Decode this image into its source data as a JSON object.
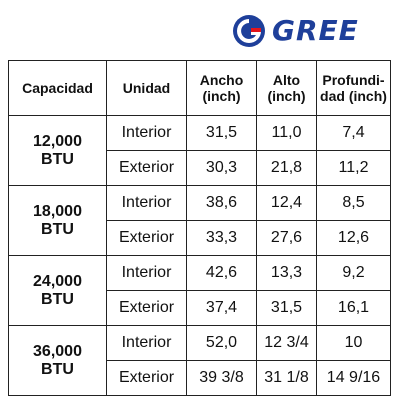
{
  "brand": {
    "logo_text": "GREE",
    "logo_color": "#1e3f9a",
    "logo_accent": "#e3151b"
  },
  "table": {
    "headers": [
      {
        "line1": "Capacidad",
        "line2": ""
      },
      {
        "line1": "Unidad",
        "line2": ""
      },
      {
        "line1": "Ancho",
        "line2": "(inch)"
      },
      {
        "line1": "Alto",
        "line2": "(inch)"
      },
      {
        "line1": "Profundi-",
        "line2": "dad (inch)"
      }
    ],
    "groups": [
      {
        "capacity_num": "12,000",
        "capacity_unit": "BTU",
        "rows": [
          {
            "unit": "Interior",
            "ancho": "31,5",
            "alto": "11,0",
            "profundidad": "7,4"
          },
          {
            "unit": "Exterior",
            "ancho": "30,3",
            "alto": "21,8",
            "profundidad": "11,2"
          }
        ]
      },
      {
        "capacity_num": "18,000",
        "capacity_unit": "BTU",
        "rows": [
          {
            "unit": "Interior",
            "ancho": "38,6",
            "alto": "12,4",
            "profundidad": "8,5"
          },
          {
            "unit": "Exterior",
            "ancho": "33,3",
            "alto": "27,6",
            "profundidad": "12,6"
          }
        ]
      },
      {
        "capacity_num": "24,000",
        "capacity_unit": "BTU",
        "rows": [
          {
            "unit": "Interior",
            "ancho": "42,6",
            "alto": "13,3",
            "profundidad": "9,2"
          },
          {
            "unit": "Exterior",
            "ancho": "37,4",
            "alto": "31,5",
            "profundidad": "16,1"
          }
        ]
      },
      {
        "capacity_num": "36,000",
        "capacity_unit": "BTU",
        "rows": [
          {
            "unit": "Interior",
            "ancho": "52,0",
            "alto": "12 3/4",
            "profundidad": "10"
          },
          {
            "unit": "Exterior",
            "ancho": "39 3/8",
            "alto": "31 1/8",
            "profundidad": "14 9/16"
          }
        ]
      }
    ]
  }
}
